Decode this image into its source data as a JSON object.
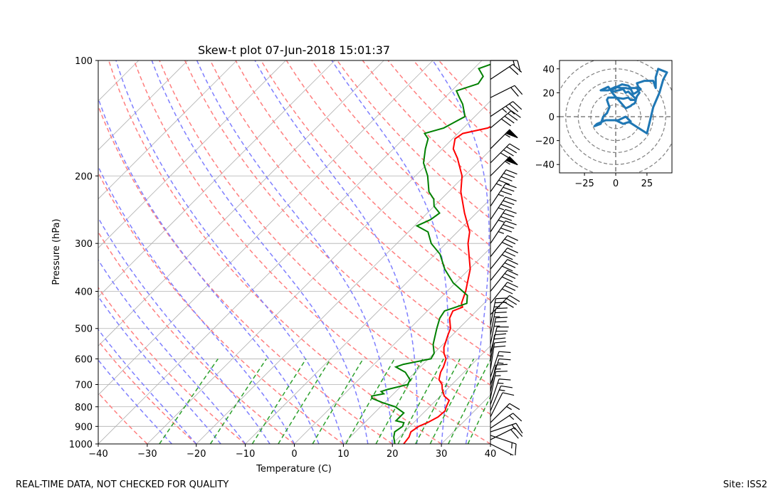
{
  "footer": {
    "left_note": "REAL-TIME DATA, NOT CHECKED FOR QUALITY",
    "site": "Site: ISS2"
  },
  "colors": {
    "temperature": "#ff0000",
    "dewpoint": "#008000",
    "dry_adiabats": "#ff7f7f",
    "moist_adiabats": "#7f7fff",
    "mixing_ratio": "#2ca02c",
    "hodograph": "#1f77b4",
    "barbs": "#000000",
    "grid": "#b0b0b0"
  },
  "chart_data": [
    {
      "type": "line",
      "kind": "skew-t",
      "title": "Skew-t plot 07-Jun-2018 15:01:37",
      "xlabel": "Temperature (C)",
      "ylabel": "Pressure (hPa)",
      "xlim": [
        -40,
        40
      ],
      "ylim": [
        1000,
        100
      ],
      "y_scale": "log",
      "grid": true,
      "x_ticks": [
        -40,
        -30,
        -20,
        -10,
        0,
        10,
        20,
        30,
        40
      ],
      "y_ticks": [
        1000,
        900,
        800,
        700,
        600,
        500,
        400,
        300,
        200,
        100
      ],
      "series": [
        {
          "role": "temperature",
          "points": [
            [
              1000,
              22.3
            ],
            [
              960,
              22.0
            ],
            [
              930,
              21.3
            ],
            [
              900,
              21.8
            ],
            [
              880,
              22.8
            ],
            [
              850,
              23.8
            ],
            [
              820,
              24.0
            ],
            [
              800,
              23.4
            ],
            [
              770,
              22.7
            ],
            [
              750,
              20.8
            ],
            [
              720,
              19.0
            ],
            [
              700,
              18.0
            ],
            [
              680,
              16.4
            ],
            [
              650,
              15.2
            ],
            [
              630,
              14.7
            ],
            [
              600,
              13.6
            ],
            [
              580,
              12.0
            ],
            [
              560,
              10.8
            ],
            [
              520,
              9.1
            ],
            [
              500,
              8.3
            ],
            [
              470,
              6.0
            ],
            [
              450,
              5.2
            ],
            [
              440,
              6.4
            ],
            [
              430,
              5.4
            ],
            [
              400,
              3.8
            ],
            [
              350,
              0.2
            ],
            [
              300,
              -5.5
            ],
            [
              280,
              -7.5
            ],
            [
              250,
              -12.4
            ],
            [
              220,
              -17.5
            ],
            [
              200,
              -20.5
            ],
            [
              180,
              -25.0
            ],
            [
              170,
              -27.8
            ],
            [
              160,
              -29.5
            ],
            [
              155,
              -29.0
            ],
            [
              150,
              -25.0
            ],
            [
              140,
              -23.0
            ],
            [
              135,
              -24.6
            ],
            [
              130,
              -22.0
            ],
            [
              125,
              -21.0
            ],
            [
              120,
              -19.0
            ],
            [
              115,
              -17.8
            ],
            [
              110,
              -16.5
            ],
            [
              105,
              -15.5
            ],
            [
              102,
              -15.4
            ],
            [
              100,
              -15.0
            ]
          ]
        },
        {
          "role": "dewpoint",
          "points": [
            [
              1000,
              20.5
            ],
            [
              960,
              18.9
            ],
            [
              930,
              18.0
            ],
            [
              900,
              18.5
            ],
            [
              880,
              18.0
            ],
            [
              870,
              16.0
            ],
            [
              850,
              16.0
            ],
            [
              830,
              16.0
            ],
            [
              800,
              13.0
            ],
            [
              780,
              9.5
            ],
            [
              760,
              6.5
            ],
            [
              750,
              6.0
            ],
            [
              740,
              8.0
            ],
            [
              730,
              7.0
            ],
            [
              720,
              8.0
            ],
            [
              700,
              11.0
            ],
            [
              680,
              10.5
            ],
            [
              650,
              8.0
            ],
            [
              630,
              5.0
            ],
            [
              620,
              6.0
            ],
            [
              600,
              10.5
            ],
            [
              580,
              10.0
            ],
            [
              550,
              8.0
            ],
            [
              500,
              5.5
            ],
            [
              470,
              4.0
            ],
            [
              450,
              3.5
            ],
            [
              430,
              6.5
            ],
            [
              410,
              5.0
            ],
            [
              380,
              -0.5
            ],
            [
              350,
              -5.0
            ],
            [
              320,
              -9.0
            ],
            [
              300,
              -13.0
            ],
            [
              280,
              -16.0
            ],
            [
              270,
              -19.5
            ],
            [
              260,
              -18.0
            ],
            [
              250,
              -17.5
            ],
            [
              240,
              -20.0
            ],
            [
              230,
              -21.5
            ],
            [
              220,
              -24.0
            ],
            [
              200,
              -27.5
            ],
            [
              185,
              -31.0
            ],
            [
              170,
              -33.5
            ],
            [
              160,
              -35.0
            ],
            [
              155,
              -36.8
            ],
            [
              150,
              -34.0
            ],
            [
              140,
              -32.0
            ],
            [
              130,
              -35.0
            ],
            [
              125,
              -37.0
            ],
            [
              120,
              -39.0
            ],
            [
              115,
              -36.0
            ],
            [
              110,
              -36.5
            ],
            [
              105,
              -39.0
            ],
            [
              100,
              -36.0
            ]
          ]
        }
      ],
      "wind_barbs": [
        {
          "p": 1000,
          "u": -20,
          "v": 10
        },
        {
          "p": 975,
          "u": -20,
          "v": -10
        },
        {
          "p": 950,
          "u": -15,
          "v": 5
        },
        {
          "p": 930,
          "u": -15,
          "v": -5
        },
        {
          "p": 910,
          "u": -12,
          "v": -8
        },
        {
          "p": 880,
          "u": -10,
          "v": -10
        },
        {
          "p": 850,
          "u": -5,
          "v": -10
        },
        {
          "p": 820,
          "u": -5,
          "v": -12
        },
        {
          "p": 790,
          "u": -5,
          "v": -15
        },
        {
          "p": 760,
          "u": -3,
          "v": -15
        },
        {
          "p": 730,
          "u": -3,
          "v": -15
        },
        {
          "p": 700,
          "u": -5,
          "v": -15
        },
        {
          "p": 670,
          "u": -5,
          "v": -15
        },
        {
          "p": 640,
          "u": -3,
          "v": -20
        },
        {
          "p": 610,
          "u": -3,
          "v": -20
        },
        {
          "p": 580,
          "u": -5,
          "v": -20
        },
        {
          "p": 550,
          "u": -5,
          "v": -25
        },
        {
          "p": 520,
          "u": -5,
          "v": -25
        },
        {
          "p": 490,
          "u": -5,
          "v": -25
        },
        {
          "p": 460,
          "u": -20,
          "v": -20
        },
        {
          "p": 430,
          "u": -20,
          "v": -25
        },
        {
          "p": 400,
          "u": -20,
          "v": -25
        },
        {
          "p": 375,
          "u": -20,
          "v": -25
        },
        {
          "p": 350,
          "u": -20,
          "v": -25
        },
        {
          "p": 325,
          "u": -20,
          "v": -25
        },
        {
          "p": 300,
          "u": -20,
          "v": -30
        },
        {
          "p": 280,
          "u": -20,
          "v": -30
        },
        {
          "p": 260,
          "u": -20,
          "v": -30
        },
        {
          "p": 240,
          "u": -20,
          "v": -30
        },
        {
          "p": 220,
          "u": -25,
          "v": -35
        },
        {
          "p": 200,
          "u": -40,
          "v": -40
        },
        {
          "p": 185,
          "u": -30,
          "v": -30
        },
        {
          "p": 170,
          "u": -40,
          "v": -40
        },
        {
          "p": 150,
          "u": -30,
          "v": -25
        },
        {
          "p": 140,
          "u": -30,
          "v": -20
        },
        {
          "p": 125,
          "u": -20,
          "v": -10
        },
        {
          "p": 112,
          "u": -15,
          "v": -10
        },
        {
          "p": 100,
          "u": -15,
          "v": 0
        }
      ]
    },
    {
      "type": "line",
      "kind": "hodograph",
      "xlim": [
        -45,
        45
      ],
      "ylim": [
        -47,
        47
      ],
      "x_ticks": [
        -25,
        0,
        25
      ],
      "y_ticks": [
        -40,
        -20,
        0,
        20,
        40
      ],
      "ring_radii": [
        10,
        20,
        30,
        40,
        50
      ],
      "points": [
        [
          0,
          -3
        ],
        [
          6,
          -6
        ],
        [
          12,
          -4
        ],
        [
          8,
          0
        ],
        [
          2,
          -3
        ],
        [
          -8,
          -3
        ],
        [
          -15,
          -6
        ],
        [
          -17,
          -8
        ],
        [
          -12,
          -6
        ],
        [
          -10,
          0
        ],
        [
          -7,
          3
        ],
        [
          -5,
          8
        ],
        [
          -7,
          14
        ],
        [
          -6,
          16
        ],
        [
          0,
          16
        ],
        [
          6,
          15
        ],
        [
          10,
          16
        ],
        [
          12,
          14
        ],
        [
          16,
          14
        ],
        [
          17,
          17
        ],
        [
          19,
          20
        ],
        [
          18,
          22
        ],
        [
          17,
          24
        ],
        [
          12,
          24
        ],
        [
          10,
          26
        ],
        [
          5,
          27
        ],
        [
          3,
          26
        ],
        [
          1,
          25
        ],
        [
          0,
          24
        ],
        [
          -4,
          22
        ],
        [
          -2,
          21
        ],
        [
          2,
          22
        ],
        [
          6,
          23
        ],
        [
          8,
          20
        ],
        [
          10,
          21
        ],
        [
          14,
          17
        ],
        [
          16,
          15
        ],
        [
          16,
          13
        ],
        [
          15,
          11
        ],
        [
          13,
          10
        ],
        [
          12,
          9
        ],
        [
          10,
          8
        ],
        [
          8,
          7
        ],
        [
          -2,
          19
        ],
        [
          -4,
          22
        ],
        [
          -6,
          25
        ],
        [
          -12,
          22
        ],
        [
          -6,
          22
        ],
        [
          0,
          25
        ],
        [
          4,
          24
        ],
        [
          8,
          24
        ],
        [
          12,
          23
        ],
        [
          14,
          19
        ],
        [
          16,
          20
        ],
        [
          20,
          23
        ],
        [
          18,
          25
        ],
        [
          17,
          28
        ],
        [
          20,
          29
        ],
        [
          23,
          30
        ],
        [
          30,
          30
        ],
        [
          32,
          24
        ],
        [
          32,
          28
        ],
        [
          32,
          33
        ],
        [
          34,
          40
        ],
        [
          41,
          37
        ],
        [
          38,
          31
        ],
        [
          35,
          20
        ],
        [
          30,
          8
        ],
        [
          25,
          -14
        ],
        [
          10,
          -4
        ]
      ]
    }
  ]
}
